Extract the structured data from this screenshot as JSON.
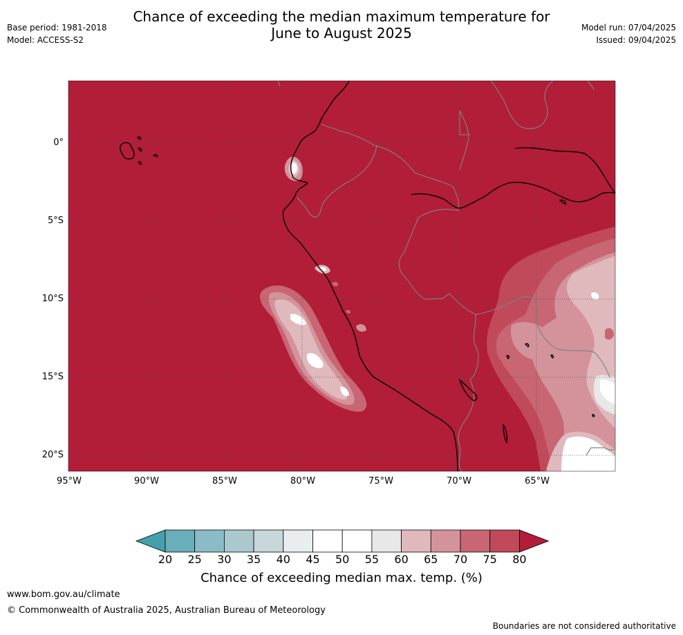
{
  "header": {
    "title_line1": "Chance of exceeding the median maximum temperature for",
    "title_line2": "June to August 2025",
    "base_period": "Base period: 1981-2018",
    "model": "Model: ACCESS-S2",
    "model_run": "Model run: 07/04/2025",
    "issued": "Issued: 09/04/2025"
  },
  "map": {
    "background_color": "#b21d37",
    "latitude_labels": [
      "0°",
      "5°S",
      "10°S",
      "15°S",
      "20°S"
    ],
    "longitude_labels": [
      "95°W",
      "90°W",
      "85°W",
      "80°W",
      "75°W",
      "70°W",
      "65°W"
    ]
  },
  "colorbar": {
    "ticks": [
      "20",
      "25",
      "30",
      "35",
      "40",
      "45",
      "50",
      "55",
      "60",
      "65",
      "70",
      "75",
      "80"
    ],
    "colors": [
      "#45a0ad",
      "#6aaeba",
      "#8bbcc6",
      "#a9c9cf",
      "#c8d7d9",
      "#e8eef0",
      "#ffffff",
      "#ffffff",
      "#e8e8e8",
      "#e0b9bd",
      "#d4939b",
      "#c86673",
      "#c04a5a",
      "#b21d37"
    ],
    "label": "Chance of exceeding median max. temp. (%)"
  },
  "footer": {
    "website": "www.bom.gov.au/climate",
    "copyright": "© Commonwealth of Australia 2025, Australian Bureau of Meteorology",
    "disclaimer": "Boundaries are not considered authoritative"
  }
}
